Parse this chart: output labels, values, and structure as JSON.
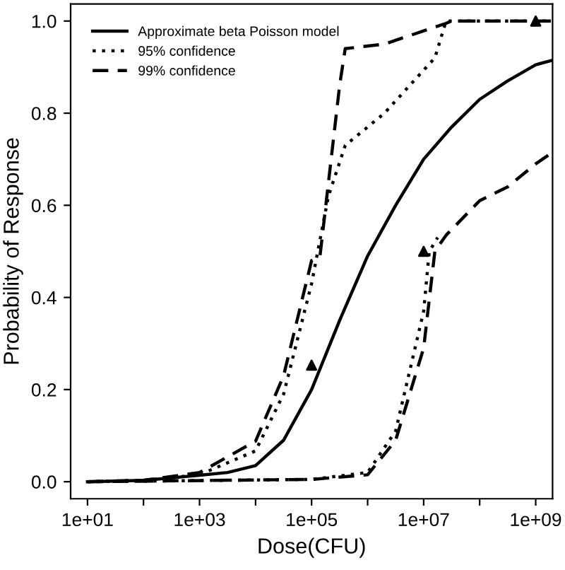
{
  "chart_data": {
    "type": "line",
    "xlabel": "Dose(CFU)",
    "ylabel": "Probability of Response",
    "log": "x",
    "xlim": [
      5,
      2000000000.0
    ],
    "ylim": [
      -0.037,
      1.037
    ],
    "xticks": [
      {
        "value": 10,
        "label": "1e+01"
      },
      {
        "value": 100,
        "label": null
      },
      {
        "value": 1000,
        "label": "1e+03"
      },
      {
        "value": 10000,
        "label": null
      },
      {
        "value": 100000,
        "label": "1e+05"
      },
      {
        "value": 1000000,
        "label": null
      },
      {
        "value": 10000000,
        "label": "1e+07"
      },
      {
        "value": 100000000,
        "label": null
      },
      {
        "value": 1000000000,
        "label": "1e+09"
      }
    ],
    "yticks": [
      {
        "value": 0,
        "label": "0.0"
      },
      {
        "value": 0.2,
        "label": "0.2"
      },
      {
        "value": 0.4,
        "label": "0.4"
      },
      {
        "value": 0.6,
        "label": "0.6"
      },
      {
        "value": 0.8,
        "label": "0.8"
      },
      {
        "value": 1,
        "label": "1.0"
      }
    ],
    "grid": false,
    "legend": "top left",
    "series": [
      {
        "name": "Approximate beta Poisson model",
        "color": "#000000",
        "line_style": "solid",
        "x": [
          10,
          100,
          1000,
          3162,
          10000,
          31623,
          100000,
          316228,
          1000000,
          3162278,
          10000000,
          31622777,
          100000000,
          316227766,
          1000000000,
          2000000000
        ],
        "values": [
          0,
          0.003,
          0.014,
          0.02,
          0.035,
          0.09,
          0.2,
          0.35,
          0.49,
          0.6,
          0.7,
          0.77,
          0.83,
          0.87,
          0.905,
          0.915
        ]
      },
      {
        "name": "95% confidence",
        "color": "#000000",
        "line_style": "dotted",
        "x": [
          10,
          100,
          1000,
          10000,
          31623,
          100000,
          199526,
          398107,
          1995262,
          11220185,
          15848932,
          25118864,
          100000000,
          2000000000
        ],
        "values": [
          0,
          0.003,
          0.015,
          0.067,
          0.19,
          0.43,
          0.62,
          0.73,
          0.8,
          0.9,
          0.92,
          1.0,
          1.0,
          1.0
        ]
      },
      {
        "name": "99% confidence",
        "color": "#000000",
        "line_style": "dashed",
        "x": [
          10,
          100,
          1000,
          10000,
          31623,
          100000,
          141254,
          316228,
          398107,
          1995262,
          25118864,
          31622777,
          100000000,
          2000000000
        ],
        "values": [
          0,
          0.003,
          0.02,
          0.088,
          0.23,
          0.48,
          0.49,
          0.86,
          0.94,
          0.95,
          0.995,
          1.0,
          1.0,
          1.0
        ]
      },
      {
        "color": "#000000",
        "line_style": "dotted",
        "x": [
          10,
          100000,
          1000000,
          3162278,
          10000000,
          12589254,
          17782794
        ],
        "values": [
          0,
          0.005,
          0.02,
          0.11,
          0.37,
          0.5,
          0.53
        ]
      },
      {
        "color": "#000000",
        "line_style": "dashed",
        "x": [
          10,
          100000,
          1000000,
          3162278,
          10000000,
          15848932,
          25118864,
          100000000,
          316227766,
          1000000000,
          2000000000
        ],
        "values": [
          0,
          0.005,
          0.015,
          0.09,
          0.29,
          0.5,
          0.535,
          0.61,
          0.64,
          0.69,
          0.715
        ]
      },
      {
        "type": "scatter",
        "color": "#000000",
        "marker": "triangle",
        "x": [
          100000,
          10000000,
          1000000000
        ],
        "values": [
          0.253,
          0.5,
          1.0
        ]
      }
    ]
  }
}
